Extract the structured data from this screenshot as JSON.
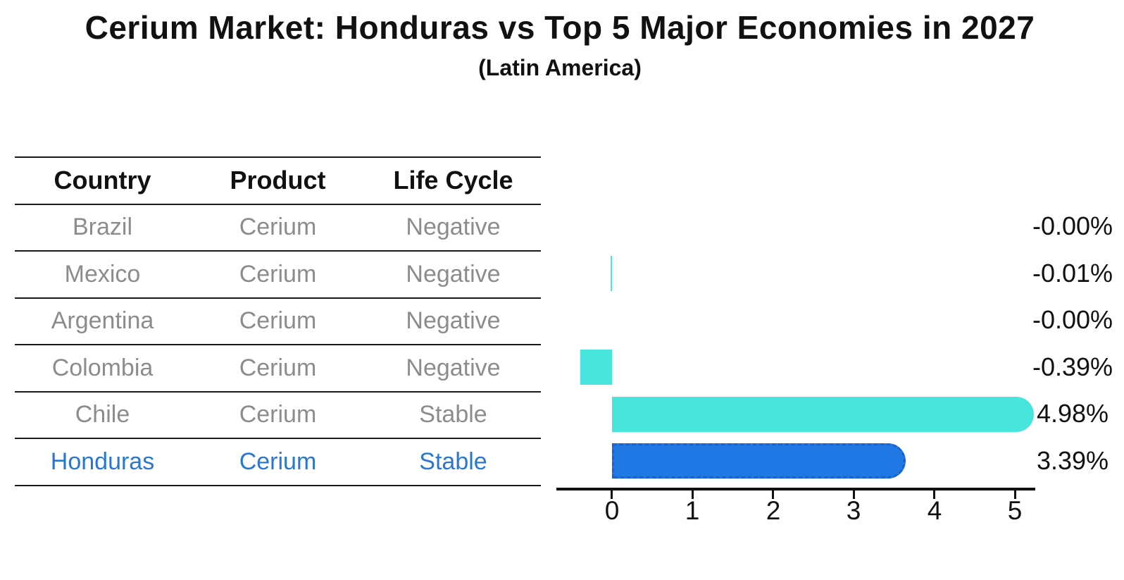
{
  "title": "Cerium Market: Honduras vs Top 5 Major Economies in 2027",
  "subtitle": "(Latin America)",
  "table": {
    "headers": [
      "Country",
      "Product",
      "Life Cycle"
    ],
    "rows": [
      {
        "country": "Brazil",
        "product": "Cerium",
        "life_cycle": "Negative",
        "highlighted": false
      },
      {
        "country": "Mexico",
        "product": "Cerium",
        "life_cycle": "Negative",
        "highlighted": false
      },
      {
        "country": "Argentina",
        "product": "Cerium",
        "life_cycle": "Negative",
        "highlighted": false
      },
      {
        "country": "Colombia",
        "product": "Cerium",
        "life_cycle": "Negative",
        "highlighted": false
      },
      {
        "country": "Chile",
        "product": "Cerium",
        "life_cycle": "Stable",
        "highlighted": false
      },
      {
        "country": "Honduras",
        "product": "Cerium",
        "life_cycle": "Stable",
        "highlighted": true
      }
    ]
  },
  "chart_data": {
    "type": "bar",
    "orientation": "horizontal",
    "title": "Cerium Market: Honduras vs Top 5 Major Economies in 2027 (Latin America)",
    "categories": [
      "Brazil",
      "Mexico",
      "Argentina",
      "Colombia",
      "Chile",
      "Honduras"
    ],
    "values": [
      -0.0,
      -0.01,
      -0.0,
      -0.39,
      4.98,
      3.39
    ],
    "value_labels": [
      "-0.00%",
      "-0.01%",
      "-0.00%",
      "-0.39%",
      "4.98%",
      "3.39%"
    ],
    "unit": "%",
    "xlabel": "",
    "ylabel": "",
    "xlim": [
      -0.7,
      5.27
    ],
    "ticks": [
      0,
      1,
      2,
      3,
      4,
      5
    ],
    "tick_labels": [
      "0",
      "1",
      "2",
      "3",
      "4",
      "5"
    ],
    "grid": false,
    "legend": false,
    "bar_colors": [
      "#48e5dd",
      "#48e5dd",
      "#48e5dd",
      "#48e5dd",
      "#48e5dd",
      "#2078e4"
    ],
    "bar_color_default": "#48e5dd",
    "bar_color_highlight": "#2078e4",
    "highlight_border_color": "#1a63cf",
    "highlight_index": 5
  }
}
